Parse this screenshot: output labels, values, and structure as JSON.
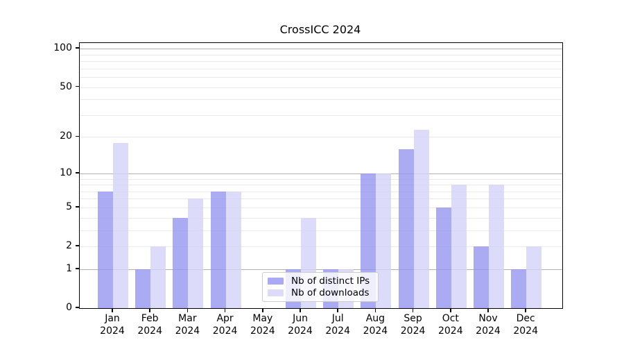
{
  "chart_data": {
    "type": "bar",
    "title": "CrossICC 2024",
    "year_label": "2024",
    "categories": [
      "Jan",
      "Feb",
      "Mar",
      "Apr",
      "May",
      "Jun",
      "Jul",
      "Aug",
      "Sep",
      "Oct",
      "Nov",
      "Dec"
    ],
    "series": [
      {
        "name": "Nb of distinct IPs",
        "color": "#a9a9f4",
        "fill_rgba": "rgba(150,150,240,0.8)",
        "values": [
          7,
          1,
          4,
          7,
          0,
          1,
          1,
          10,
          16,
          5,
          2,
          1
        ]
      },
      {
        "name": "Nb of downloads",
        "color": "#dcdcfa",
        "fill_rgba": "rgba(211,211,249,0.8)",
        "values": [
          18,
          2,
          6,
          7,
          0,
          4,
          1,
          10,
          23,
          8,
          8,
          2
        ]
      }
    ],
    "xlabel": "",
    "ylabel": "",
    "yscale": "log1p",
    "ylim": [
      0,
      112
    ],
    "yticks": [
      0,
      1,
      2,
      5,
      10,
      20,
      50,
      100
    ],
    "grid_major": [
      1,
      10,
      100
    ],
    "grid_minor": [
      2,
      3,
      4,
      5,
      6,
      7,
      8,
      9,
      20,
      30,
      40,
      50,
      60,
      70,
      80,
      90
    ],
    "grid": "on",
    "legend_position": "lower center"
  }
}
